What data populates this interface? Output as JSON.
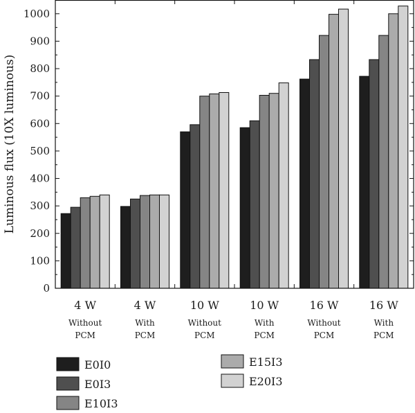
{
  "chart_data": {
    "type": "bar",
    "title": "",
    "ylabel": "Luminous flux (10X luminous)",
    "xlabel": "",
    "ylim": [
      0,
      1050
    ],
    "yticks": [
      0,
      100,
      200,
      300,
      400,
      500,
      600,
      700,
      800,
      900,
      1000
    ],
    "grid": false,
    "legend_position": "bottom",
    "categories": [
      {
        "main": "4 W",
        "sub": [
          "Without",
          "PCM"
        ]
      },
      {
        "main": "4 W",
        "sub": [
          "With",
          "PCM"
        ]
      },
      {
        "main": "10 W",
        "sub": [
          "Without",
          "PCM"
        ]
      },
      {
        "main": "10 W",
        "sub": [
          "With",
          "PCM"
        ]
      },
      {
        "main": "16 W",
        "sub": [
          "Without",
          "PCM"
        ]
      },
      {
        "main": "16 W",
        "sub": [
          "With",
          "PCM"
        ]
      }
    ],
    "series": [
      {
        "name": "E0I0",
        "color": "#1e1e1e",
        "values": [
          272,
          298,
          570,
          585,
          762,
          772
        ]
      },
      {
        "name": "E0I3",
        "color": "#4f4f4f",
        "values": [
          295,
          325,
          596,
          610,
          833,
          833
        ]
      },
      {
        "name": "E10I3",
        "color": "#858585",
        "values": [
          330,
          338,
          700,
          703,
          921,
          921
        ]
      },
      {
        "name": "E15I3",
        "color": "#ababab",
        "values": [
          335,
          340,
          708,
          710,
          998,
          1000
        ]
      },
      {
        "name": "E20I3",
        "color": "#d2d2d2",
        "values": [
          340,
          340,
          713,
          748,
          1017,
          1028
        ]
      }
    ]
  }
}
